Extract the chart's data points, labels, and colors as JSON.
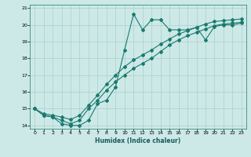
{
  "xlabel": "Humidex (Indice chaleur)",
  "ylabel": "",
  "bg_color": "#cce9e7",
  "grid_color": "#aacfcd",
  "line_color": "#1a7a6e",
  "xlim": [
    -0.5,
    23.5
  ],
  "ylim": [
    13.8,
    21.2
  ],
  "xticks": [
    0,
    1,
    2,
    3,
    4,
    5,
    6,
    7,
    8,
    9,
    10,
    11,
    12,
    13,
    14,
    15,
    16,
    17,
    18,
    19,
    20,
    21,
    22,
    23
  ],
  "yticks": [
    14,
    15,
    16,
    17,
    18,
    19,
    20,
    21
  ],
  "line1_x": [
    0,
    1,
    2,
    3,
    4,
    5,
    6,
    7,
    8,
    9,
    10,
    11,
    12,
    13,
    14,
    15,
    16,
    17,
    18,
    19,
    20,
    21,
    22,
    23
  ],
  "line1_y": [
    15.0,
    14.6,
    14.5,
    14.1,
    14.0,
    14.0,
    14.3,
    15.3,
    15.5,
    16.3,
    18.5,
    20.65,
    19.7,
    20.3,
    20.3,
    19.7,
    19.7,
    19.7,
    19.85,
    19.1,
    19.9,
    20.0,
    20.0,
    20.1
  ],
  "line2_x": [
    0,
    1,
    2,
    3,
    4,
    5,
    6,
    7,
    8,
    9,
    10,
    11,
    12,
    13,
    14,
    15,
    16,
    17,
    18,
    19,
    20,
    21,
    22,
    23
  ],
  "line2_y": [
    15.0,
    14.6,
    14.5,
    14.3,
    14.1,
    14.3,
    15.0,
    15.5,
    16.1,
    16.6,
    17.0,
    17.4,
    17.7,
    18.0,
    18.4,
    18.8,
    19.1,
    19.35,
    19.55,
    19.75,
    19.95,
    20.05,
    20.1,
    20.15
  ],
  "line3_x": [
    0,
    1,
    2,
    3,
    4,
    5,
    6,
    7,
    8,
    9,
    10,
    11,
    12,
    13,
    14,
    15,
    16,
    17,
    18,
    19,
    20,
    21,
    22,
    23
  ],
  "line3_y": [
    15.0,
    14.7,
    14.6,
    14.5,
    14.35,
    14.6,
    15.2,
    15.8,
    16.45,
    17.0,
    17.5,
    17.9,
    18.2,
    18.5,
    18.85,
    19.15,
    19.45,
    19.65,
    19.85,
    20.05,
    20.2,
    20.25,
    20.3,
    20.35
  ],
  "marker": "D",
  "markersize": 2.0,
  "linewidth": 0.8
}
